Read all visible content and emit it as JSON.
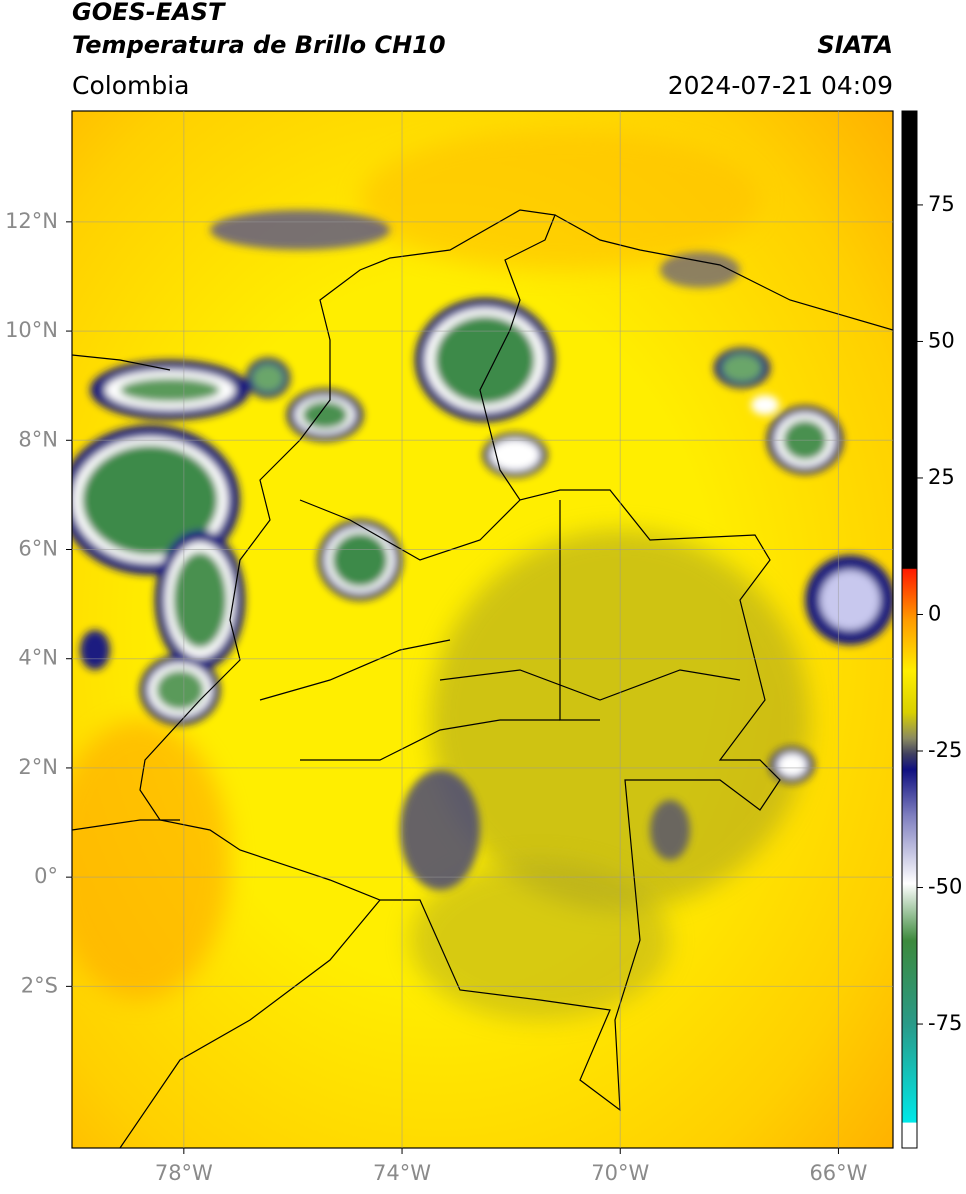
{
  "header": {
    "satellite": "GOES-EAST",
    "product": "Temperatura de Brillo CH10",
    "source": "SIATA",
    "region": "Colombia",
    "datetime": "2024-07-21 04:09"
  },
  "chart_data": {
    "type": "map",
    "xlim": [
      -80.05,
      -65.0
    ],
    "ylim": [
      -4.96,
      14.03
    ],
    "xticks": [
      {
        "value": -78,
        "label": "78°W"
      },
      {
        "value": -74,
        "label": "74°W"
      },
      {
        "value": -70,
        "label": "70°W"
      },
      {
        "value": -66,
        "label": "66°W"
      }
    ],
    "yticks": [
      {
        "value": 12,
        "label": "12°N"
      },
      {
        "value": 10,
        "label": "10°N"
      },
      {
        "value": 8,
        "label": "8°N"
      },
      {
        "value": 6,
        "label": "6°N"
      },
      {
        "value": 4,
        "label": "4°N"
      },
      {
        "value": 2,
        "label": "2°N"
      },
      {
        "value": 0,
        "label": "0°"
      },
      {
        "value": -2,
        "label": "2°S"
      }
    ],
    "grid": true,
    "colorbar": {
      "lim": [
        -97.7,
        92.2
      ],
      "ticks": [
        75,
        50,
        25,
        0,
        -25,
        -50,
        -75
      ]
    }
  }
}
